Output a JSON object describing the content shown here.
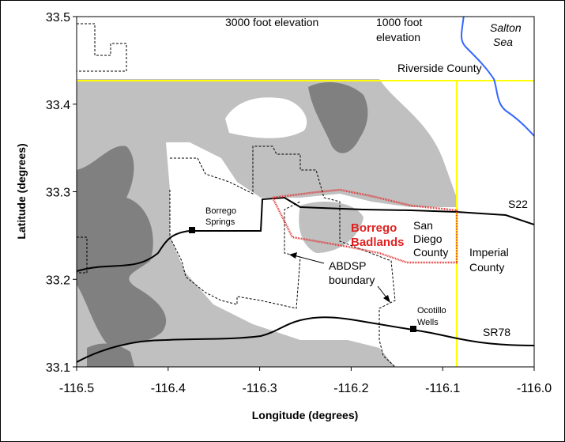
{
  "chart_data": {
    "type": "map",
    "x_label": "Longitude (degrees)",
    "y_label": "Latitude (degrees)",
    "xlim": [
      -116.5,
      -116.0
    ],
    "ylim": [
      33.1,
      33.5
    ],
    "xticks": [
      -116.5,
      -116.4,
      -116.3,
      -116.2,
      -116.1,
      {
        "value": -116,
        "label": "-116.0"
      }
    ],
    "yticks": [
      33.1,
      33.2,
      33.3,
      33.4,
      33.5
    ],
    "annotations": [
      {
        "lines": [
          "3000 foot elevation"
        ]
      },
      {
        "lines": [
          "1000 foot",
          "elevation"
        ]
      },
      {
        "lines": [
          "Salton",
          "Sea"
        ]
      },
      {
        "lines": [
          "Riverside County"
        ]
      },
      {
        "lines": [
          "S22"
        ]
      },
      {
        "lines": [
          "Borrego",
          "Springs"
        ]
      },
      {
        "lines": [
          "Borrego",
          "Badlands"
        ]
      },
      {
        "lines": [
          "San",
          "Diego",
          "County"
        ]
      },
      {
        "lines": [
          "Imperial",
          "County"
        ]
      },
      {
        "lines": [
          "ABDSP",
          "boundary"
        ]
      },
      {
        "lines": [
          "Ocotillo",
          "Wells"
        ]
      },
      {
        "lines": [
          "SR78"
        ]
      }
    ]
  }
}
